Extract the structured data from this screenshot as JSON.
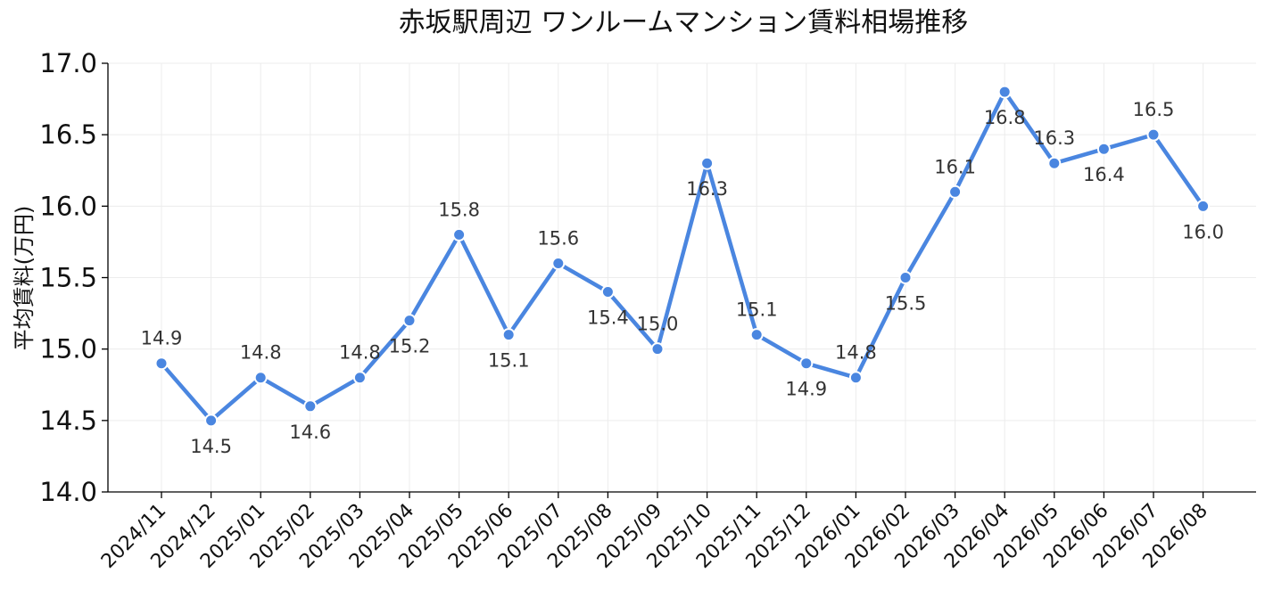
{
  "chart_data": {
    "type": "line",
    "title": "赤坂駅周辺 ワンルームマンション賃料相場推移",
    "xlabel": "",
    "ylabel": "平均賃料(万円)",
    "categories": [
      "2024/11",
      "2024/12",
      "2025/01",
      "2025/02",
      "2025/03",
      "2025/04",
      "2025/05",
      "2025/06",
      "2025/07",
      "2025/08",
      "2025/09",
      "2025/10",
      "2025/11",
      "2025/12",
      "2026/01",
      "2026/02",
      "2026/03",
      "2026/04",
      "2026/05",
      "2026/06",
      "2026/07",
      "2026/08"
    ],
    "values": [
      14.9,
      14.5,
      14.8,
      14.6,
      14.8,
      15.2,
      15.8,
      15.1,
      15.6,
      15.4,
      15.0,
      16.3,
      15.1,
      14.9,
      14.8,
      15.5,
      16.1,
      16.8,
      16.3,
      16.4,
      16.5,
      16.0
    ],
    "data_labels": [
      "14.9",
      "14.5",
      "14.8",
      "14.6",
      "14.8",
      "15.2",
      "15.8",
      "15.1",
      "15.6",
      "15.4",
      "15.0",
      "16.3",
      "15.1",
      "14.9",
      "14.8",
      "15.5",
      "16.1",
      "16.8",
      "16.3",
      "16.4",
      "16.5",
      "16.0"
    ],
    "label_positions": [
      "above",
      "below",
      "above",
      "below",
      "above",
      "below",
      "above",
      "below",
      "above",
      "below",
      "above",
      "below",
      "above",
      "below",
      "above",
      "below",
      "above",
      "below",
      "above",
      "below",
      "above",
      "below"
    ],
    "ylim": [
      14.0,
      17.0
    ],
    "yticks": [
      "14.0",
      "14.5",
      "15.0",
      "15.5",
      "16.0",
      "16.5",
      "17.0"
    ],
    "grid": true,
    "line_color": "#4a86e0",
    "marker_edge_color": "#ffffff"
  }
}
